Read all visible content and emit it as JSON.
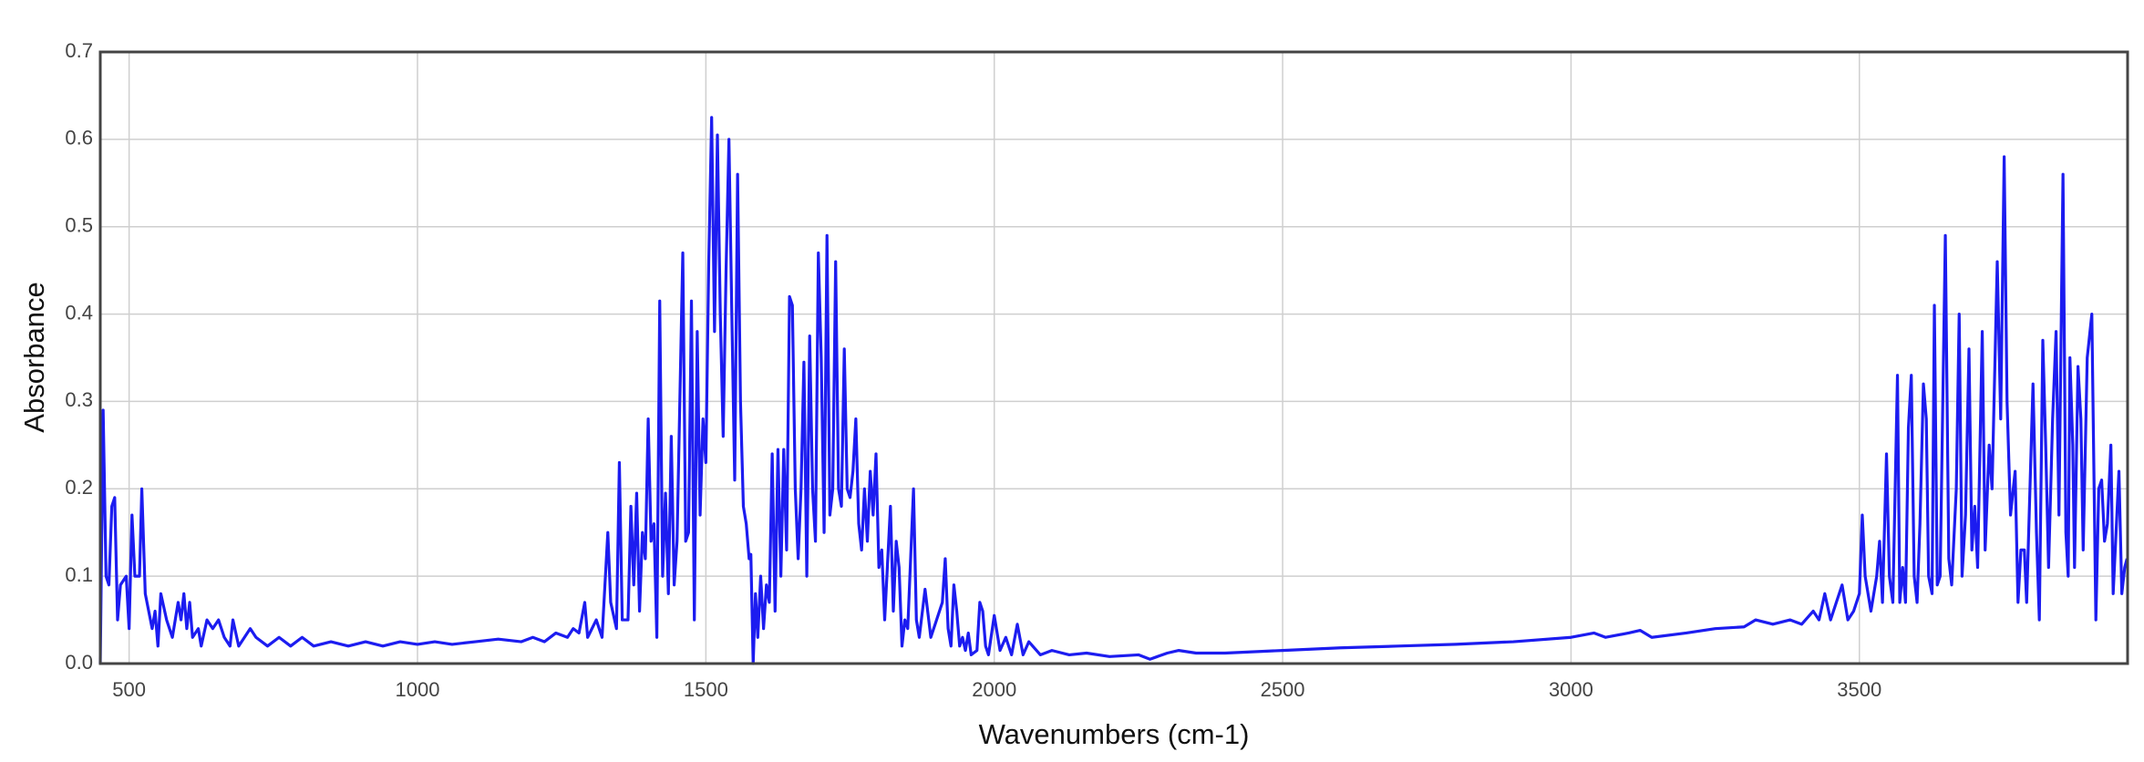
{
  "chart_data": {
    "type": "line",
    "x_label": "Wavenumbers (cm-1)",
    "y_label": "Absorbance",
    "x": [
      450,
      455,
      460,
      465,
      470,
      475,
      480,
      485,
      495,
      500,
      505,
      510,
      518,
      522,
      528,
      540,
      545,
      550,
      555,
      565,
      575,
      585,
      590,
      595,
      600,
      605,
      610,
      620,
      625,
      635,
      645,
      655,
      665,
      675,
      680,
      690,
      700,
      710,
      720,
      740,
      760,
      780,
      800,
      820,
      850,
      880,
      910,
      940,
      970,
      1000,
      1030,
      1060,
      1100,
      1140,
      1180,
      1200,
      1220,
      1240,
      1260,
      1270,
      1280,
      1290,
      1295,
      1310,
      1320,
      1330,
      1335,
      1345,
      1350,
      1355,
      1365,
      1370,
      1375,
      1380,
      1385,
      1390,
      1395,
      1400,
      1405,
      1410,
      1415,
      1420,
      1425,
      1430,
      1435,
      1440,
      1445,
      1450,
      1460,
      1465,
      1470,
      1475,
      1480,
      1485,
      1490,
      1495,
      1500,
      1505,
      1510,
      1515,
      1520,
      1525,
      1530,
      1535,
      1540,
      1545,
      1550,
      1555,
      1560,
      1565,
      1570,
      1575,
      1578,
      1582,
      1586,
      1590,
      1595,
      1600,
      1605,
      1610,
      1615,
      1620,
      1625,
      1630,
      1635,
      1640,
      1645,
      1650,
      1655,
      1660,
      1665,
      1670,
      1675,
      1680,
      1685,
      1690,
      1695,
      1700,
      1705,
      1710,
      1715,
      1720,
      1725,
      1730,
      1735,
      1740,
      1745,
      1750,
      1755,
      1760,
      1765,
      1770,
      1775,
      1780,
      1785,
      1790,
      1795,
      1800,
      1805,
      1810,
      1820,
      1825,
      1830,
      1835,
      1840,
      1845,
      1850,
      1860,
      1865,
      1870,
      1880,
      1890,
      1900,
      1910,
      1915,
      1920,
      1925,
      1930,
      1935,
      1940,
      1945,
      1950,
      1955,
      1960,
      1970,
      1975,
      1980,
      1985,
      1990,
      2000,
      2010,
      2020,
      2030,
      2040,
      2050,
      2060,
      2080,
      2100,
      2130,
      2160,
      2200,
      2250,
      2270,
      2300,
      2320,
      2350,
      2400,
      2500,
      2600,
      2700,
      2800,
      2900,
      3000,
      3040,
      3060,
      3100,
      3120,
      3140,
      3200,
      3250,
      3300,
      3320,
      3350,
      3380,
      3400,
      3420,
      3430,
      3440,
      3450,
      3460,
      3470,
      3480,
      3490,
      3500,
      3505,
      3510,
      3520,
      3530,
      3535,
      3540,
      3547,
      3552,
      3558,
      3566,
      3570,
      3575,
      3580,
      3585,
      3590,
      3595,
      3600,
      3605,
      3611,
      3616,
      3620,
      3626,
      3630,
      3635,
      3640,
      3649,
      3655,
      3660,
      3668,
      3673,
      3678,
      3684,
      3690,
      3695,
      3700,
      3705,
      3713,
      3718,
      3725,
      3730,
      3739,
      3745,
      3751,
      3756,
      3762,
      3770,
      3775,
      3780,
      3786,
      3790,
      3801,
      3807,
      3812,
      3818,
      3823,
      3828,
      3835,
      3841,
      3846,
      3853,
      3858,
      3862,
      3865,
      3870,
      3873,
      3879,
      3884,
      3888,
      3895,
      3903,
      3910,
      3915,
      3920,
      3925,
      3930,
      3936,
      3940,
      3945,
      3950,
      3955,
      3960,
      3964
    ],
    "values": [
      0.0,
      0.29,
      0.1,
      0.09,
      0.18,
      0.19,
      0.05,
      0.09,
      0.1,
      0.04,
      0.17,
      0.1,
      0.1,
      0.2,
      0.08,
      0.04,
      0.06,
      0.02,
      0.08,
      0.05,
      0.03,
      0.07,
      0.05,
      0.08,
      0.04,
      0.07,
      0.03,
      0.04,
      0.02,
      0.05,
      0.04,
      0.05,
      0.03,
      0.02,
      0.05,
      0.02,
      0.03,
      0.04,
      0.03,
      0.02,
      0.03,
      0.02,
      0.03,
      0.02,
      0.025,
      0.02,
      0.025,
      0.02,
      0.025,
      0.022,
      0.025,
      0.022,
      0.025,
      0.028,
      0.025,
      0.03,
      0.025,
      0.035,
      0.03,
      0.04,
      0.035,
      0.07,
      0.03,
      0.05,
      0.03,
      0.15,
      0.07,
      0.04,
      0.23,
      0.05,
      0.05,
      0.18,
      0.09,
      0.195,
      0.06,
      0.15,
      0.12,
      0.28,
      0.14,
      0.16,
      0.03,
      0.415,
      0.1,
      0.195,
      0.08,
      0.26,
      0.09,
      0.14,
      0.47,
      0.14,
      0.15,
      0.415,
      0.05,
      0.38,
      0.17,
      0.28,
      0.23,
      0.46,
      0.625,
      0.38,
      0.605,
      0.4,
      0.26,
      0.45,
      0.6,
      0.4,
      0.21,
      0.56,
      0.3,
      0.18,
      0.16,
      0.12,
      0.125,
      0.0,
      0.08,
      0.03,
      0.1,
      0.04,
      0.09,
      0.07,
      0.24,
      0.06,
      0.245,
      0.1,
      0.245,
      0.13,
      0.42,
      0.41,
      0.2,
      0.12,
      0.2,
      0.345,
      0.1,
      0.375,
      0.2,
      0.14,
      0.47,
      0.35,
      0.15,
      0.49,
      0.17,
      0.2,
      0.46,
      0.2,
      0.18,
      0.36,
      0.2,
      0.19,
      0.22,
      0.28,
      0.16,
      0.13,
      0.2,
      0.14,
      0.22,
      0.17,
      0.24,
      0.11,
      0.13,
      0.05,
      0.18,
      0.06,
      0.14,
      0.11,
      0.02,
      0.05,
      0.04,
      0.2,
      0.05,
      0.03,
      0.085,
      0.03,
      0.05,
      0.07,
      0.12,
      0.04,
      0.02,
      0.09,
      0.06,
      0.02,
      0.03,
      0.015,
      0.035,
      0.01,
      0.015,
      0.07,
      0.06,
      0.02,
      0.01,
      0.055,
      0.015,
      0.03,
      0.01,
      0.045,
      0.01,
      0.025,
      0.01,
      0.015,
      0.01,
      0.012,
      0.008,
      0.01,
      0.005,
      0.012,
      0.015,
      0.012,
      0.012,
      0.015,
      0.018,
      0.02,
      0.022,
      0.025,
      0.03,
      0.035,
      0.03,
      0.035,
      0.038,
      0.03,
      0.035,
      0.04,
      0.042,
      0.05,
      0.045,
      0.05,
      0.045,
      0.06,
      0.05,
      0.08,
      0.05,
      0.07,
      0.09,
      0.05,
      0.06,
      0.08,
      0.17,
      0.1,
      0.06,
      0.1,
      0.14,
      0.07,
      0.24,
      0.1,
      0.07,
      0.33,
      0.07,
      0.11,
      0.07,
      0.27,
      0.33,
      0.1,
      0.07,
      0.16,
      0.32,
      0.28,
      0.1,
      0.08,
      0.41,
      0.09,
      0.1,
      0.49,
      0.12,
      0.09,
      0.2,
      0.4,
      0.1,
      0.17,
      0.36,
      0.13,
      0.18,
      0.11,
      0.38,
      0.13,
      0.25,
      0.2,
      0.46,
      0.28,
      0.58,
      0.3,
      0.17,
      0.22,
      0.07,
      0.13,
      0.13,
      0.07,
      0.32,
      0.15,
      0.05,
      0.37,
      0.25,
      0.11,
      0.28,
      0.38,
      0.17,
      0.56,
      0.15,
      0.1,
      0.35,
      0.25,
      0.11,
      0.34,
      0.28,
      0.13,
      0.35,
      0.4,
      0.05,
      0.2,
      0.21,
      0.14,
      0.16,
      0.25,
      0.08,
      0.15,
      0.22,
      0.08,
      0.11,
      0.12
    ],
    "color": "#1c1cf0",
    "xlim": [
      450,
      3965
    ],
    "ylim": [
      0,
      0.7
    ],
    "xticks": [
      500,
      1000,
      1500,
      2000,
      2500,
      3000,
      3500
    ],
    "yticks": [
      {
        "value": 0,
        "label": "0.0"
      },
      0.1,
      0.2,
      0.3,
      0.4,
      0.5,
      0.6,
      0.7
    ],
    "grid": true
  }
}
